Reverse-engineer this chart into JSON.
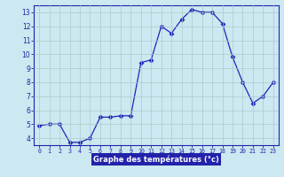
{
  "hours": [
    0,
    1,
    2,
    3,
    4,
    5,
    6,
    7,
    8,
    9,
    10,
    11,
    12,
    13,
    14,
    15,
    16,
    17,
    18,
    19,
    20,
    21,
    22,
    23
  ],
  "temps": [
    4.9,
    5.0,
    5.0,
    3.7,
    3.7,
    4.0,
    5.5,
    5.5,
    5.6,
    5.6,
    9.4,
    9.6,
    12.0,
    11.5,
    12.5,
    13.2,
    13.0,
    13.0,
    12.2,
    9.8,
    8.0,
    6.5,
    7.0,
    8.0
  ],
  "line_color": "#2222bb",
  "marker": "D",
  "marker_size": 2.5,
  "background_color": "#cce8f0",
  "plot_bg_color": "#cce8f0",
  "grid_color": "#aacccc",
  "xlabel": "Graphe des températures (°c)",
  "xlabel_bg": "#2222aa",
  "xlabel_color": "#ffffff",
  "ylim": [
    3.5,
    13.5
  ],
  "xlim": [
    -0.5,
    23.5
  ],
  "yticks": [
    4,
    5,
    6,
    7,
    8,
    9,
    10,
    11,
    12,
    13
  ],
  "xtick_labels": [
    "0",
    "1",
    "2",
    "3",
    "4",
    "5",
    "6",
    "7",
    "8",
    "9",
    "10",
    "11",
    "12",
    "13",
    "14",
    "15",
    "16",
    "17",
    "18",
    "19",
    "20",
    "21",
    "22",
    "23"
  ],
  "tick_color": "#2222aa",
  "tick_label_color": "#2222aa",
  "spine_color": "#2222aa"
}
